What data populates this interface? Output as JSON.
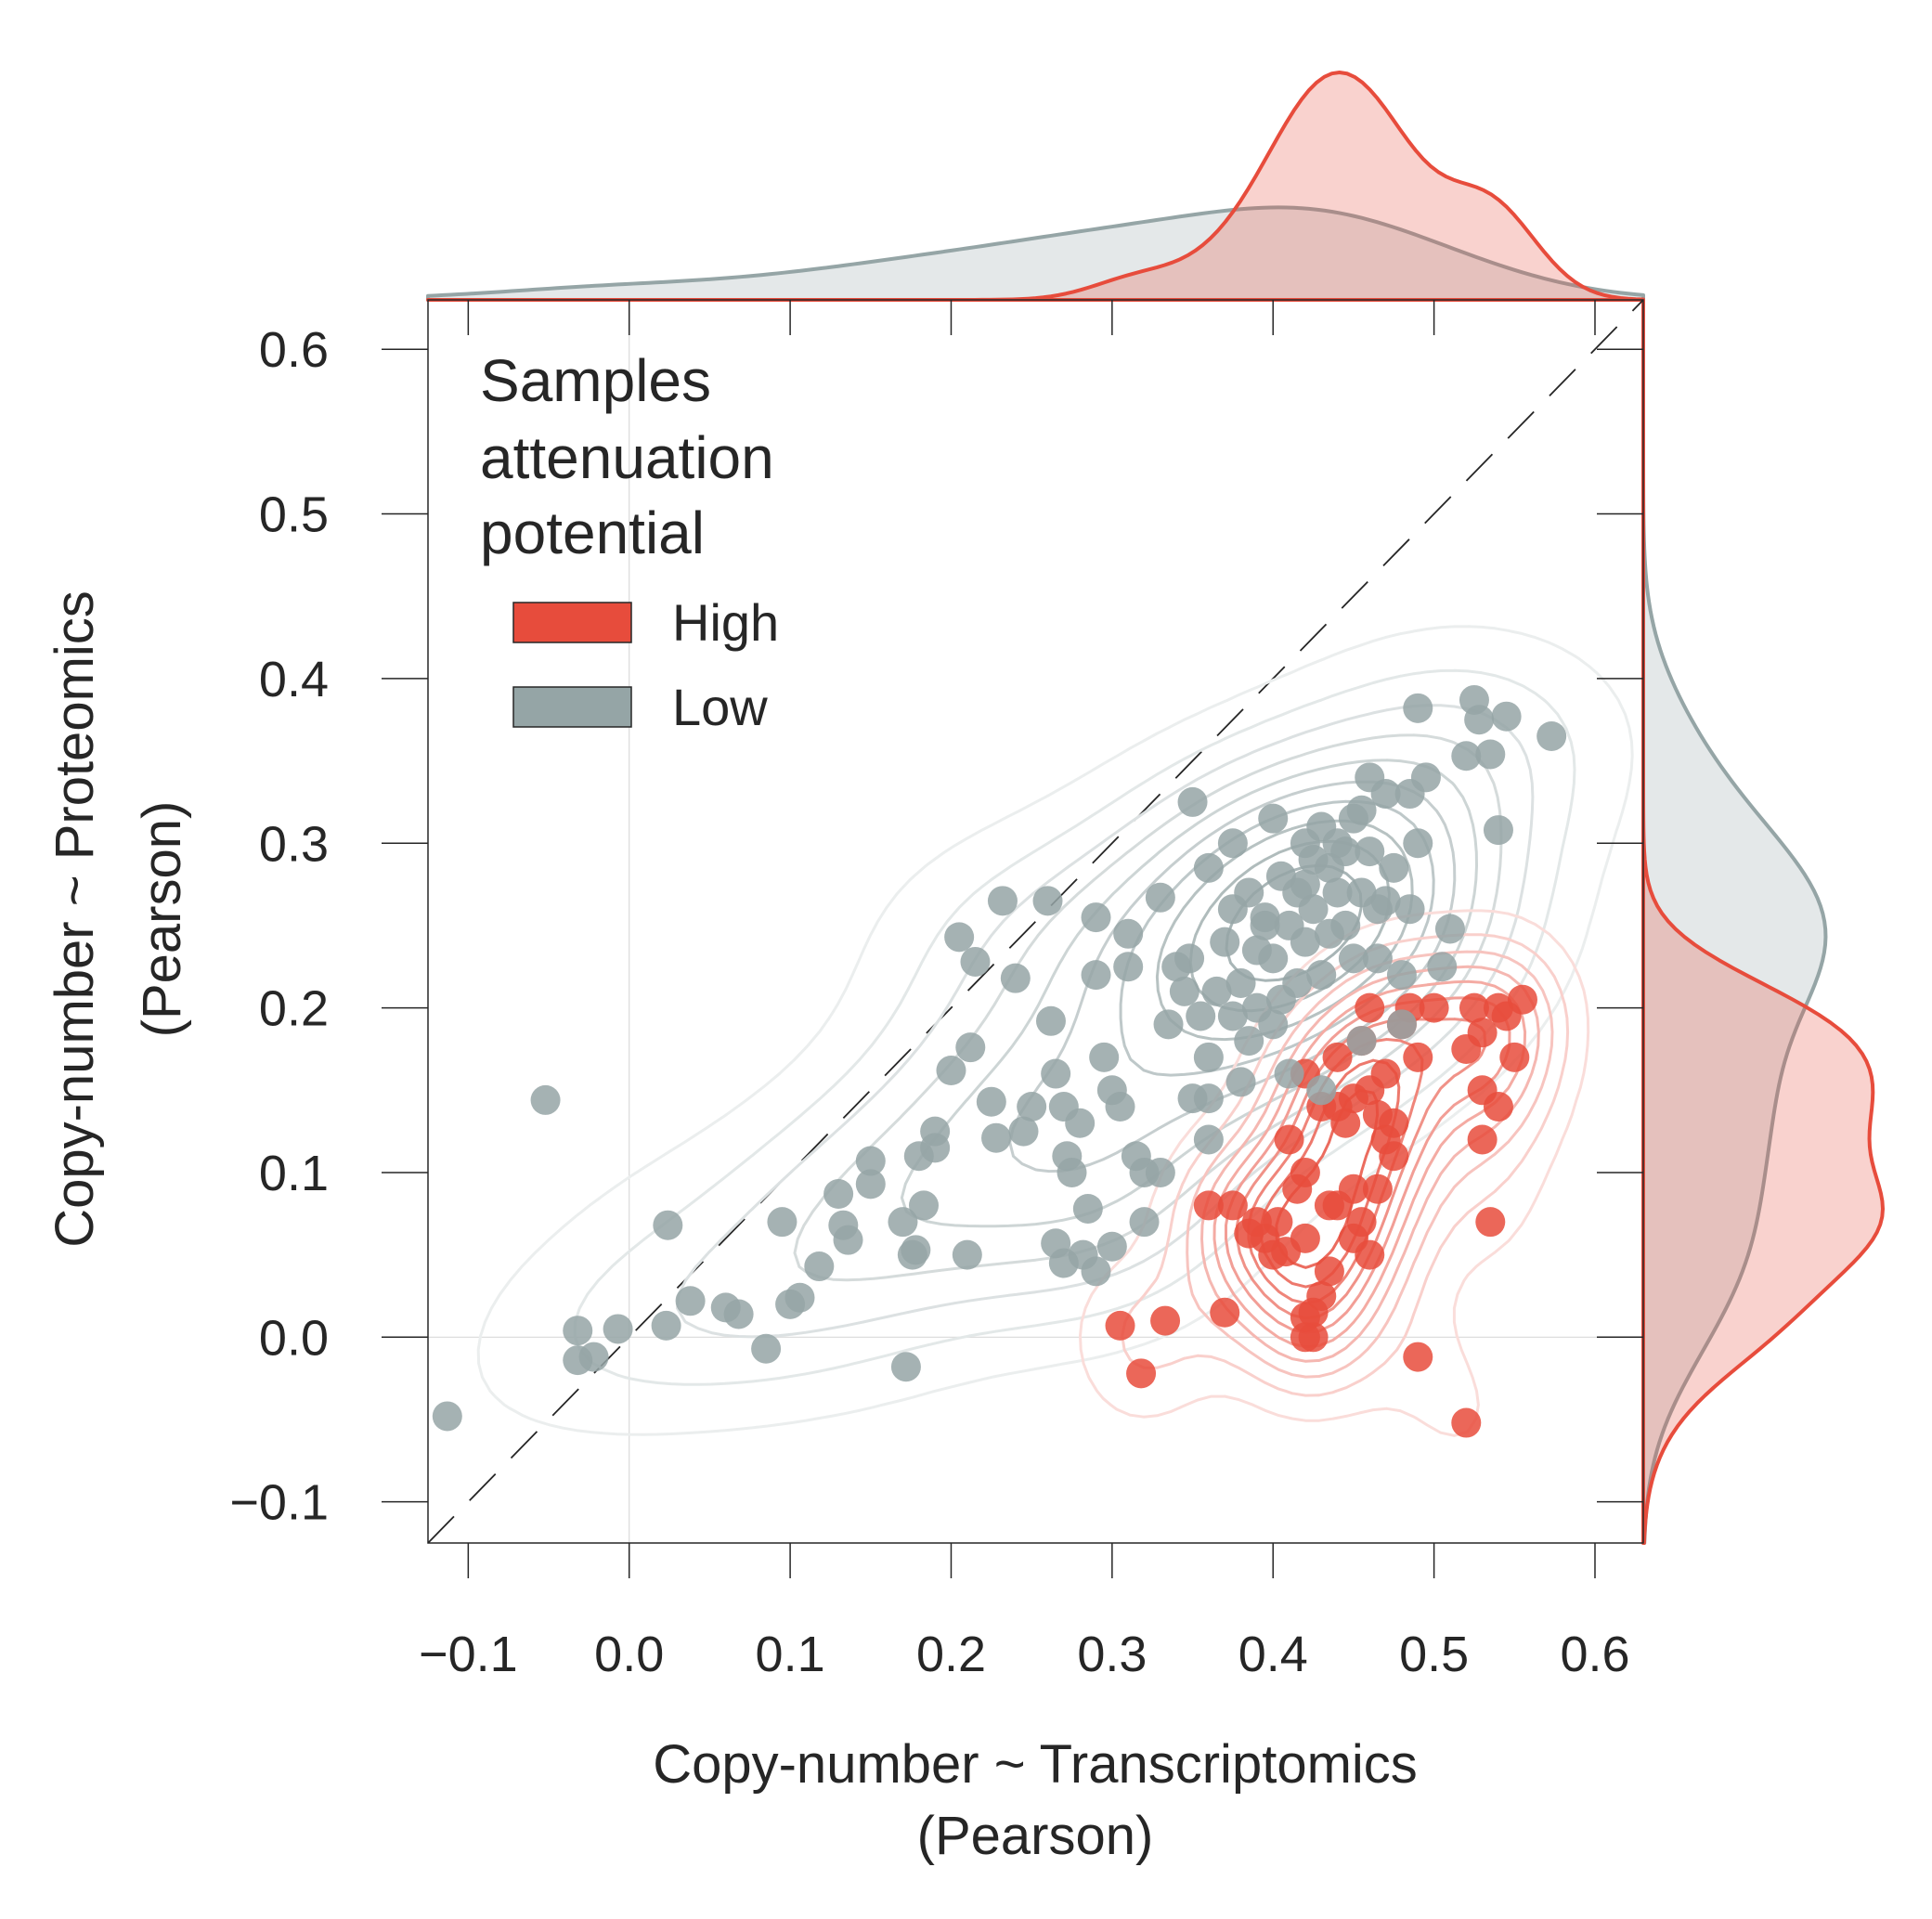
{
  "chart_data": {
    "type": "scatter",
    "xlabel": [
      "Copy-number ~ Transcriptomics",
      "(Pearson)"
    ],
    "ylabel": [
      "Copy-number ~ Proteomics",
      "(Pearson)"
    ],
    "xlim": [
      -0.125,
      0.63
    ],
    "ylim": [
      -0.125,
      0.63
    ],
    "x_ticks": [
      -0.1,
      0.0,
      0.1,
      0.2,
      0.3,
      0.4,
      0.5,
      0.6
    ],
    "x_tick_labels": [
      "−0.1",
      "0.0",
      "0.1",
      "0.2",
      "0.3",
      "0.4",
      "0.5",
      "0.6"
    ],
    "y_ticks": [
      -0.1,
      0.0,
      0.1,
      0.2,
      0.3,
      0.4,
      0.5,
      0.6
    ],
    "y_tick_labels": [
      "−0.1",
      "0.0",
      "0.1",
      "0.2",
      "0.3",
      "0.4",
      "0.5",
      "0.6"
    ],
    "reference_lines": {
      "x0": true,
      "y0": true,
      "diagonal_dashed": true
    },
    "kde_contours": true,
    "marginal_densities": true,
    "legend": {
      "title": [
        "Samples",
        "attenuation",
        "potential"
      ],
      "position": "top-left",
      "entries": [
        {
          "label": "High",
          "color": "#e74c3c"
        },
        {
          "label": "Low",
          "color": "#95a5a6"
        }
      ]
    },
    "series": [
      {
        "name": "High",
        "color": "#e74c3c",
        "points": [
          [
            0.305,
            0.007
          ],
          [
            0.318,
            -0.022
          ],
          [
            0.333,
            0.01
          ],
          [
            0.37,
            0.015
          ],
          [
            0.385,
            0.063
          ],
          [
            0.395,
            0.06
          ],
          [
            0.4,
            0.05
          ],
          [
            0.403,
            0.07
          ],
          [
            0.408,
            0.052
          ],
          [
            0.42,
            0.06
          ],
          [
            0.375,
            0.08
          ],
          [
            0.41,
            0.12
          ],
          [
            0.42,
            0.1
          ],
          [
            0.42,
            0.012
          ],
          [
            0.425,
            0.0
          ],
          [
            0.43,
            0.025
          ],
          [
            0.425,
            0.015
          ],
          [
            0.44,
            0.08
          ],
          [
            0.45,
            0.06
          ],
          [
            0.455,
            0.07
          ],
          [
            0.46,
            0.05
          ],
          [
            0.44,
            0.14
          ],
          [
            0.445,
            0.13
          ],
          [
            0.46,
            0.15
          ],
          [
            0.465,
            0.135
          ],
          [
            0.47,
            0.12
          ],
          [
            0.475,
            0.13
          ],
          [
            0.455,
            0.18
          ],
          [
            0.46,
            0.2
          ],
          [
            0.47,
            0.16
          ],
          [
            0.475,
            0.11
          ],
          [
            0.48,
            0.19
          ],
          [
            0.485,
            0.2
          ],
          [
            0.49,
            0.17
          ],
          [
            0.44,
            0.17
          ],
          [
            0.43,
            0.14
          ],
          [
            0.42,
            0.16
          ],
          [
            0.45,
            0.145
          ],
          [
            0.52,
            0.175
          ],
          [
            0.525,
            0.2
          ],
          [
            0.53,
            0.15
          ],
          [
            0.53,
            0.12
          ],
          [
            0.535,
            0.07
          ],
          [
            0.54,
            0.14
          ],
          [
            0.54,
            0.2
          ],
          [
            0.545,
            0.195
          ],
          [
            0.55,
            0.17
          ],
          [
            0.555,
            0.205
          ],
          [
            0.53,
            0.185
          ],
          [
            0.52,
            -0.052
          ],
          [
            0.49,
            -0.012
          ],
          [
            0.42,
            0.0
          ],
          [
            0.45,
            0.09
          ],
          [
            0.5,
            0.2
          ],
          [
            0.415,
            0.09
          ],
          [
            0.435,
            0.08
          ],
          [
            0.465,
            0.09
          ],
          [
            0.39,
            0.07
          ],
          [
            0.36,
            0.08
          ],
          [
            0.435,
            0.04
          ]
        ]
      },
      {
        "name": "Low",
        "color": "#95a5a6",
        "points": [
          [
            -0.113,
            -0.048
          ],
          [
            -0.052,
            0.144
          ],
          [
            -0.032,
            0.004
          ],
          [
            -0.032,
            -0.014
          ],
          [
            -0.022,
            -0.012
          ],
          [
            -0.007,
            0.005
          ],
          [
            0.024,
            0.068
          ],
          [
            0.023,
            0.007
          ],
          [
            0.038,
            0.022
          ],
          [
            0.06,
            0.018
          ],
          [
            0.068,
            0.014
          ],
          [
            0.085,
            -0.007
          ],
          [
            0.095,
            0.07
          ],
          [
            0.1,
            0.02
          ],
          [
            0.106,
            0.024
          ],
          [
            0.118,
            0.043
          ],
          [
            0.13,
            0.087
          ],
          [
            0.133,
            0.068
          ],
          [
            0.136,
            0.059
          ],
          [
            0.15,
            0.107
          ],
          [
            0.15,
            0.093
          ],
          [
            0.17,
            0.07
          ],
          [
            0.172,
            -0.018
          ],
          [
            0.176,
            0.05
          ],
          [
            0.178,
            0.053
          ],
          [
            0.18,
            0.11
          ],
          [
            0.183,
            0.08
          ],
          [
            0.19,
            0.125
          ],
          [
            0.19,
            0.115
          ],
          [
            0.2,
            0.162
          ],
          [
            0.205,
            0.243
          ],
          [
            0.212,
            0.176
          ],
          [
            0.21,
            0.05
          ],
          [
            0.215,
            0.228
          ],
          [
            0.225,
            0.143
          ],
          [
            0.228,
            0.121
          ],
          [
            0.232,
            0.265
          ],
          [
            0.24,
            0.218
          ],
          [
            0.25,
            0.14
          ],
          [
            0.26,
            0.265
          ],
          [
            0.262,
            0.192
          ],
          [
            0.265,
            0.16
          ],
          [
            0.27,
            0.14
          ],
          [
            0.272,
            0.11
          ],
          [
            0.275,
            0.1
          ],
          [
            0.28,
            0.13
          ],
          [
            0.282,
            0.05
          ],
          [
            0.285,
            0.078
          ],
          [
            0.29,
            0.255
          ],
          [
            0.29,
            0.22
          ],
          [
            0.295,
            0.17
          ],
          [
            0.3,
            0.15
          ],
          [
            0.305,
            0.14
          ],
          [
            0.31,
            0.245
          ],
          [
            0.31,
            0.225
          ],
          [
            0.315,
            0.11
          ],
          [
            0.32,
            0.1
          ],
          [
            0.33,
            0.267
          ],
          [
            0.335,
            0.19
          ],
          [
            0.34,
            0.225
          ],
          [
            0.345,
            0.21
          ],
          [
            0.348,
            0.23
          ],
          [
            0.35,
            0.325
          ],
          [
            0.355,
            0.195
          ],
          [
            0.36,
            0.17
          ],
          [
            0.36,
            0.145
          ],
          [
            0.37,
            0.24
          ],
          [
            0.375,
            0.26
          ],
          [
            0.38,
            0.215
          ],
          [
            0.385,
            0.27
          ],
          [
            0.39,
            0.2
          ],
          [
            0.395,
            0.25
          ],
          [
            0.4,
            0.23
          ],
          [
            0.4,
            0.315
          ],
          [
            0.405,
            0.28
          ],
          [
            0.41,
            0.25
          ],
          [
            0.415,
            0.27
          ],
          [
            0.42,
            0.3
          ],
          [
            0.42,
            0.24
          ],
          [
            0.425,
            0.26
          ],
          [
            0.43,
            0.31
          ],
          [
            0.435,
            0.285
          ],
          [
            0.44,
            0.27
          ],
          [
            0.44,
            0.3
          ],
          [
            0.445,
            0.25
          ],
          [
            0.45,
            0.23
          ],
          [
            0.455,
            0.32
          ],
          [
            0.46,
            0.34
          ],
          [
            0.46,
            0.295
          ],
          [
            0.465,
            0.26
          ],
          [
            0.47,
            0.33
          ],
          [
            0.475,
            0.285
          ],
          [
            0.48,
            0.22
          ],
          [
            0.485,
            0.33
          ],
          [
            0.49,
            0.3
          ],
          [
            0.49,
            0.382
          ],
          [
            0.495,
            0.34
          ],
          [
            0.52,
            0.353
          ],
          [
            0.525,
            0.387
          ],
          [
            0.528,
            0.375
          ],
          [
            0.535,
            0.354
          ],
          [
            0.545,
            0.377
          ],
          [
            0.573,
            0.365
          ],
          [
            0.54,
            0.308
          ],
          [
            0.51,
            0.248
          ],
          [
            0.505,
            0.225
          ],
          [
            0.48,
            0.19
          ],
          [
            0.455,
            0.18
          ],
          [
            0.43,
            0.15
          ],
          [
            0.41,
            0.16
          ],
          [
            0.38,
            0.155
          ],
          [
            0.36,
            0.12
          ],
          [
            0.35,
            0.145
          ],
          [
            0.33,
            0.1
          ],
          [
            0.32,
            0.07
          ],
          [
            0.27,
            0.045
          ],
          [
            0.29,
            0.04
          ],
          [
            0.3,
            0.055
          ],
          [
            0.265,
            0.057
          ],
          [
            0.245,
            0.125
          ],
          [
            0.36,
            0.285
          ],
          [
            0.375,
            0.3
          ],
          [
            0.39,
            0.235
          ],
          [
            0.405,
            0.205
          ],
          [
            0.415,
            0.215
          ],
          [
            0.42,
            0.275
          ],
          [
            0.435,
            0.245
          ],
          [
            0.445,
            0.295
          ],
          [
            0.455,
            0.27
          ],
          [
            0.375,
            0.195
          ],
          [
            0.365,
            0.21
          ],
          [
            0.385,
            0.18
          ],
          [
            0.4,
            0.19
          ],
          [
            0.43,
            0.22
          ],
          [
            0.465,
            0.23
          ],
          [
            0.47,
            0.265
          ],
          [
            0.485,
            0.26
          ],
          [
            0.45,
            0.315
          ],
          [
            0.425,
            0.29
          ],
          [
            0.395,
            0.255
          ]
        ]
      }
    ]
  }
}
